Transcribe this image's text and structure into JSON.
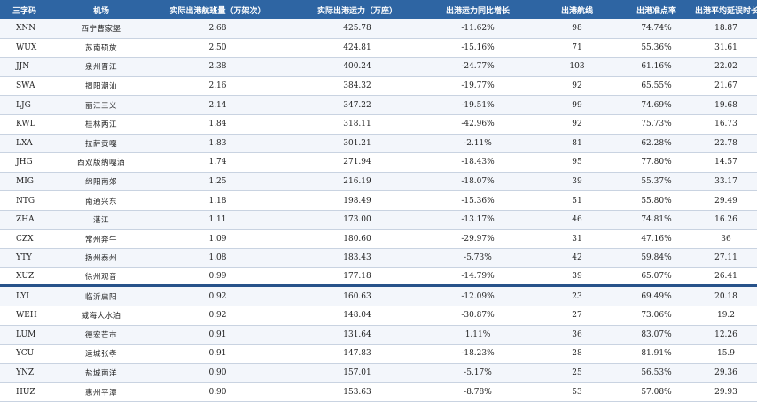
{
  "headers": [
    "三字码",
    "机场",
    "实际出港航班量（万架次）",
    "实际出港运力（万座）",
    "出港运力同比增长",
    "出港航线",
    "出港准点率",
    "出港平均延误时长（分钟）"
  ],
  "rows": [
    [
      "XNN",
      "西宁曹家堡",
      "2.68",
      "425.78",
      "-11.62%",
      "98",
      "74.74%",
      "18.87"
    ],
    [
      "WUX",
      "苏南硕放",
      "2.50",
      "424.81",
      "-15.16%",
      "71",
      "55.36%",
      "31.61"
    ],
    [
      "JJN",
      "泉州晋江",
      "2.38",
      "400.24",
      "-24.77%",
      "103",
      "61.16%",
      "22.02"
    ],
    [
      "SWA",
      "揭阳潮汕",
      "2.16",
      "384.32",
      "-19.77%",
      "92",
      "65.55%",
      "21.67"
    ],
    [
      "LJG",
      "丽江三义",
      "2.14",
      "347.22",
      "-19.51%",
      "99",
      "74.69%",
      "19.68"
    ],
    [
      "KWL",
      "桂林两江",
      "1.84",
      "318.11",
      "-42.96%",
      "92",
      "75.73%",
      "16.73"
    ],
    [
      "LXA",
      "拉萨贡嘎",
      "1.83",
      "301.21",
      "-2.11%",
      "81",
      "62.28%",
      "22.78"
    ],
    [
      "JHG",
      "西双版纳嘎洒",
      "1.74",
      "271.94",
      "-18.43%",
      "95",
      "77.80%",
      "14.57"
    ],
    [
      "MIG",
      "绵阳南郊",
      "1.25",
      "216.19",
      "-18.07%",
      "39",
      "55.37%",
      "33.17"
    ],
    [
      "NTG",
      "南通兴东",
      "1.18",
      "198.49",
      "-15.36%",
      "51",
      "55.80%",
      "29.49"
    ],
    [
      "ZHA",
      "湛江",
      "1.11",
      "173.00",
      "-13.17%",
      "46",
      "74.81%",
      "16.26"
    ],
    [
      "CZX",
      "常州奔牛",
      "1.09",
      "180.60",
      "-29.97%",
      "31",
      "47.16%",
      "36"
    ],
    [
      "YTY",
      "扬州泰州",
      "1.08",
      "183.43",
      "-5.73%",
      "42",
      "59.84%",
      "27.11"
    ],
    [
      "XUZ",
      "徐州观音",
      "0.99",
      "177.18",
      "-14.79%",
      "39",
      "65.07%",
      "26.41"
    ],
    [
      "LYI",
      "临沂启阳",
      "0.92",
      "160.63",
      "-12.09%",
      "23",
      "69.49%",
      "20.18"
    ],
    [
      "WEH",
      "威海大水泊",
      "0.92",
      "148.04",
      "-30.87%",
      "27",
      "73.06%",
      "19.2"
    ],
    [
      "LUM",
      "德宏芒市",
      "0.91",
      "131.64",
      "1.11%",
      "36",
      "83.07%",
      "12.26"
    ],
    [
      "YCU",
      "运城张孝",
      "0.91",
      "147.83",
      "-18.23%",
      "28",
      "81.91%",
      "15.9"
    ],
    [
      "YNZ",
      "盐城南洋",
      "0.90",
      "157.01",
      "-5.17%",
      "25",
      "56.53%",
      "29.36"
    ],
    [
      "HUZ",
      "惠州平潭",
      "0.90",
      "153.63",
      "-8.78%",
      "53",
      "57.08%",
      "29.93"
    ]
  ],
  "colors": {
    "header_bg": "#2e65a3",
    "header_text": "#ffffff",
    "separator": "#27528a"
  }
}
